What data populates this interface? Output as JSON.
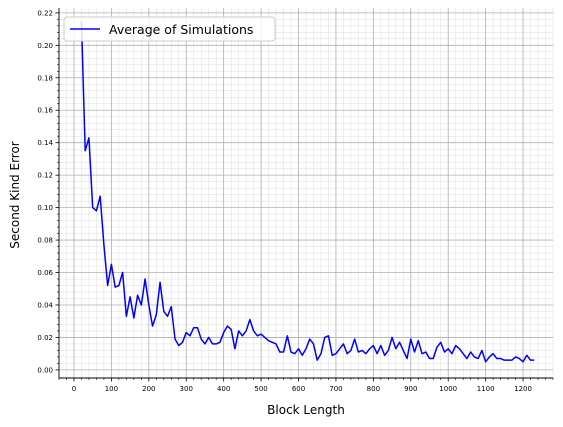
{
  "chart_data": {
    "type": "line",
    "xlabel": "Block Length",
    "ylabel": "Second Kind Error",
    "xlim": [
      -40,
      1280
    ],
    "ylim": [
      -0.005,
      0.223
    ],
    "x_ticks": [
      0,
      100,
      200,
      300,
      400,
      500,
      600,
      700,
      800,
      900,
      1000,
      1100,
      1200
    ],
    "x_tick_labels": [
      "0",
      "100",
      "200",
      "300",
      "400",
      "500",
      "600",
      "700",
      "800",
      "900",
      "1000",
      "1100",
      "1200"
    ],
    "y_ticks": [
      0.0,
      0.02,
      0.04,
      0.06,
      0.08,
      0.1,
      0.12,
      0.14,
      0.16,
      0.18,
      0.2,
      0.22
    ],
    "y_tick_labels": [
      "0.00",
      "0.02",
      "0.04",
      "0.06",
      "0.08",
      "0.10",
      "0.12",
      "0.14",
      "0.16",
      "0.18",
      "0.20",
      "0.22"
    ],
    "grid": "major and minor",
    "legend_position": "top-left",
    "colors": {
      "series": "#0000ff",
      "grid_major": "#b0b0b0",
      "grid_minor": "#dddddd"
    },
    "series": [
      {
        "name": "Average of Simulations",
        "x": [
          20,
          30,
          40,
          50,
          60,
          70,
          80,
          90,
          100,
          110,
          120,
          130,
          140,
          150,
          160,
          170,
          180,
          190,
          200,
          210,
          220,
          230,
          240,
          250,
          260,
          270,
          280,
          290,
          300,
          310,
          320,
          330,
          340,
          350,
          360,
          370,
          380,
          390,
          400,
          410,
          420,
          430,
          440,
          450,
          460,
          470,
          480,
          490,
          500,
          510,
          520,
          530,
          540,
          550,
          560,
          570,
          580,
          590,
          600,
          610,
          620,
          630,
          640,
          650,
          660,
          670,
          680,
          690,
          700,
          710,
          720,
          730,
          740,
          750,
          760,
          770,
          780,
          790,
          800,
          810,
          820,
          830,
          840,
          850,
          860,
          870,
          880,
          890,
          900,
          910,
          920,
          930,
          940,
          950,
          960,
          970,
          980,
          990,
          1000,
          1010,
          1020,
          1030,
          1040,
          1050,
          1060,
          1070,
          1080,
          1090,
          1100,
          1110,
          1120,
          1130,
          1140,
          1150,
          1160,
          1170,
          1180,
          1190,
          1200,
          1210,
          1220,
          1230
        ],
        "values": [
          0.215,
          0.135,
          0.143,
          0.1,
          0.098,
          0.107,
          0.077,
          0.052,
          0.065,
          0.051,
          0.052,
          0.06,
          0.033,
          0.045,
          0.032,
          0.046,
          0.04,
          0.056,
          0.04,
          0.027,
          0.034,
          0.054,
          0.036,
          0.033,
          0.039,
          0.019,
          0.015,
          0.017,
          0.023,
          0.021,
          0.026,
          0.026,
          0.019,
          0.016,
          0.02,
          0.016,
          0.016,
          0.017,
          0.023,
          0.027,
          0.025,
          0.013,
          0.024,
          0.021,
          0.024,
          0.031,
          0.024,
          0.021,
          0.022,
          0.02,
          0.018,
          0.017,
          0.016,
          0.011,
          0.011,
          0.021,
          0.011,
          0.01,
          0.013,
          0.009,
          0.013,
          0.019,
          0.016,
          0.006,
          0.01,
          0.02,
          0.021,
          0.009,
          0.01,
          0.013,
          0.016,
          0.01,
          0.012,
          0.019,
          0.011,
          0.012,
          0.01,
          0.013,
          0.015,
          0.01,
          0.015,
          0.009,
          0.012,
          0.02,
          0.013,
          0.017,
          0.012,
          0.007,
          0.019,
          0.011,
          0.018,
          0.01,
          0.011,
          0.007,
          0.007,
          0.014,
          0.017,
          0.011,
          0.013,
          0.01,
          0.015,
          0.013,
          0.01,
          0.007,
          0.011,
          0.008,
          0.007,
          0.012,
          0.005,
          0.008,
          0.01,
          0.007,
          0.007,
          0.006,
          0.006,
          0.006,
          0.008,
          0.007,
          0.005,
          0.009,
          0.006,
          0.006
        ]
      }
    ]
  }
}
